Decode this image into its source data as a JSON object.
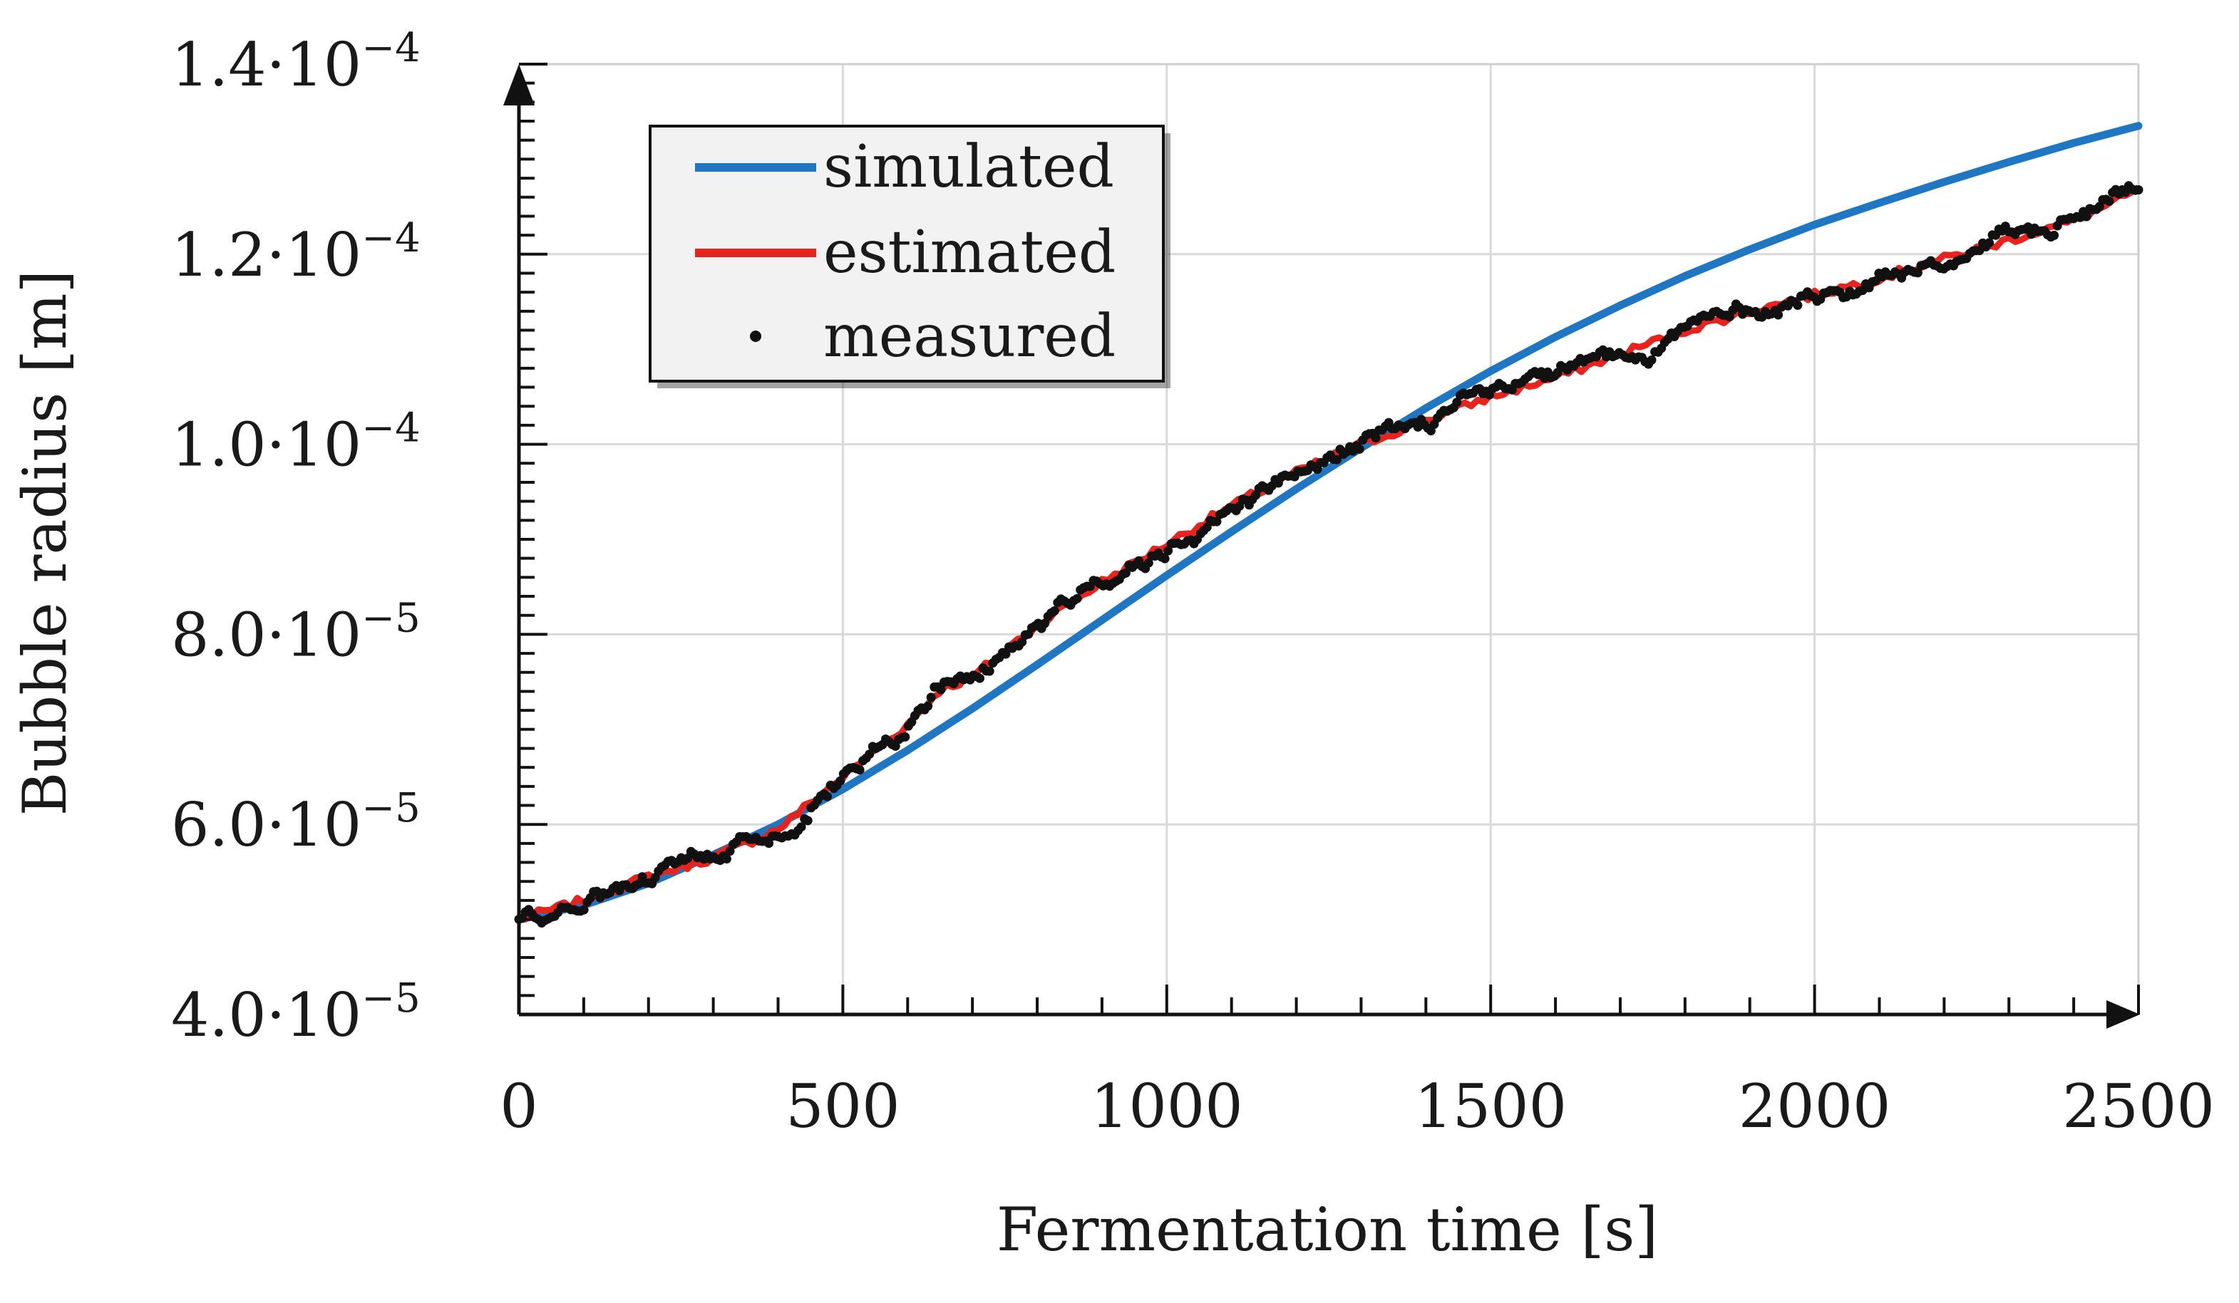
{
  "chart_data": {
    "type": "line",
    "title": "",
    "xlabel": "Fermentation time [s]",
    "ylabel": "Bubble radius [m]",
    "xlim": [
      0,
      2500
    ],
    "ylim": [
      4e-05,
      0.00014
    ],
    "grid": true,
    "legend_position": "top-left",
    "x_ticks": [
      0,
      500,
      1000,
      1500,
      2000,
      2500
    ],
    "x_tick_labels": [
      "0",
      "500",
      "1000",
      "1500",
      "2000",
      "2500"
    ],
    "y_ticks": [
      4e-05,
      6e-05,
      8e-05,
      0.0001,
      0.00012,
      0.00014
    ],
    "y_tick_labels": [
      {
        "mantissa": "4.0·10",
        "exponent": "−5"
      },
      {
        "mantissa": "6.0·10",
        "exponent": "−5"
      },
      {
        "mantissa": "8.0·10",
        "exponent": "−5"
      },
      {
        "mantissa": "1.0·10",
        "exponent": "−4"
      },
      {
        "mantissa": "1.2·10",
        "exponent": "−4"
      },
      {
        "mantissa": "1.4·10",
        "exponent": "−4"
      }
    ],
    "series": [
      {
        "name": "simulated",
        "style": "line",
        "color": "#1f77c4",
        "x": [
          0,
          100,
          200,
          300,
          400,
          500,
          600,
          700,
          800,
          900,
          1000,
          1100,
          1200,
          1300,
          1400,
          1500,
          1600,
          1700,
          1800,
          1900,
          2000,
          2100,
          2200,
          2300,
          2400,
          2500
        ],
        "y": [
          5e-05,
          5.15e-05,
          5.38e-05,
          5.68e-05,
          6e-05,
          6.37e-05,
          6.78e-05,
          7.22e-05,
          7.68e-05,
          8.15e-05,
          8.62e-05,
          9.08e-05,
          9.53e-05,
          9.96e-05,
          0.0001038,
          0.0001077,
          0.0001113,
          0.0001146,
          0.0001177,
          0.0001205,
          0.0001231,
          0.0001254,
          0.0001276,
          0.0001297,
          0.0001317,
          0.0001335
        ]
      },
      {
        "name": "estimated",
        "style": "line",
        "color": "#e8231e",
        "x": [
          0,
          100,
          200,
          300,
          400,
          500,
          600,
          650,
          700,
          800,
          900,
          1000,
          1100,
          1200,
          1300,
          1400,
          1500,
          1600,
          1700,
          1800,
          1900,
          2000,
          2100,
          2200,
          2300,
          2400,
          2500
        ],
        "y": [
          5e-05,
          5.2e-05,
          5.45e-05,
          5.65e-05,
          5.95e-05,
          6.5e-05,
          7.05e-05,
          7.42e-05,
          7.55e-05,
          8.1e-05,
          8.55e-05,
          8.95e-05,
          9.35e-05,
          9.7e-05,
          0.0001,
          0.0001025,
          0.000105,
          0.000107,
          0.0001095,
          0.000112,
          0.000114,
          0.0001157,
          0.0001175,
          0.0001195,
          0.0001215,
          0.0001235,
          0.0001267
        ]
      },
      {
        "name": "measured",
        "style": "markers",
        "color": "#111111",
        "x_range": [
          0,
          2500
        ],
        "count": 500,
        "note": "noisy scatter that follows the estimated curve"
      }
    ]
  },
  "legend": {
    "items": [
      {
        "label": "simulated"
      },
      {
        "label": "estimated"
      },
      {
        "label": "measured"
      }
    ]
  }
}
